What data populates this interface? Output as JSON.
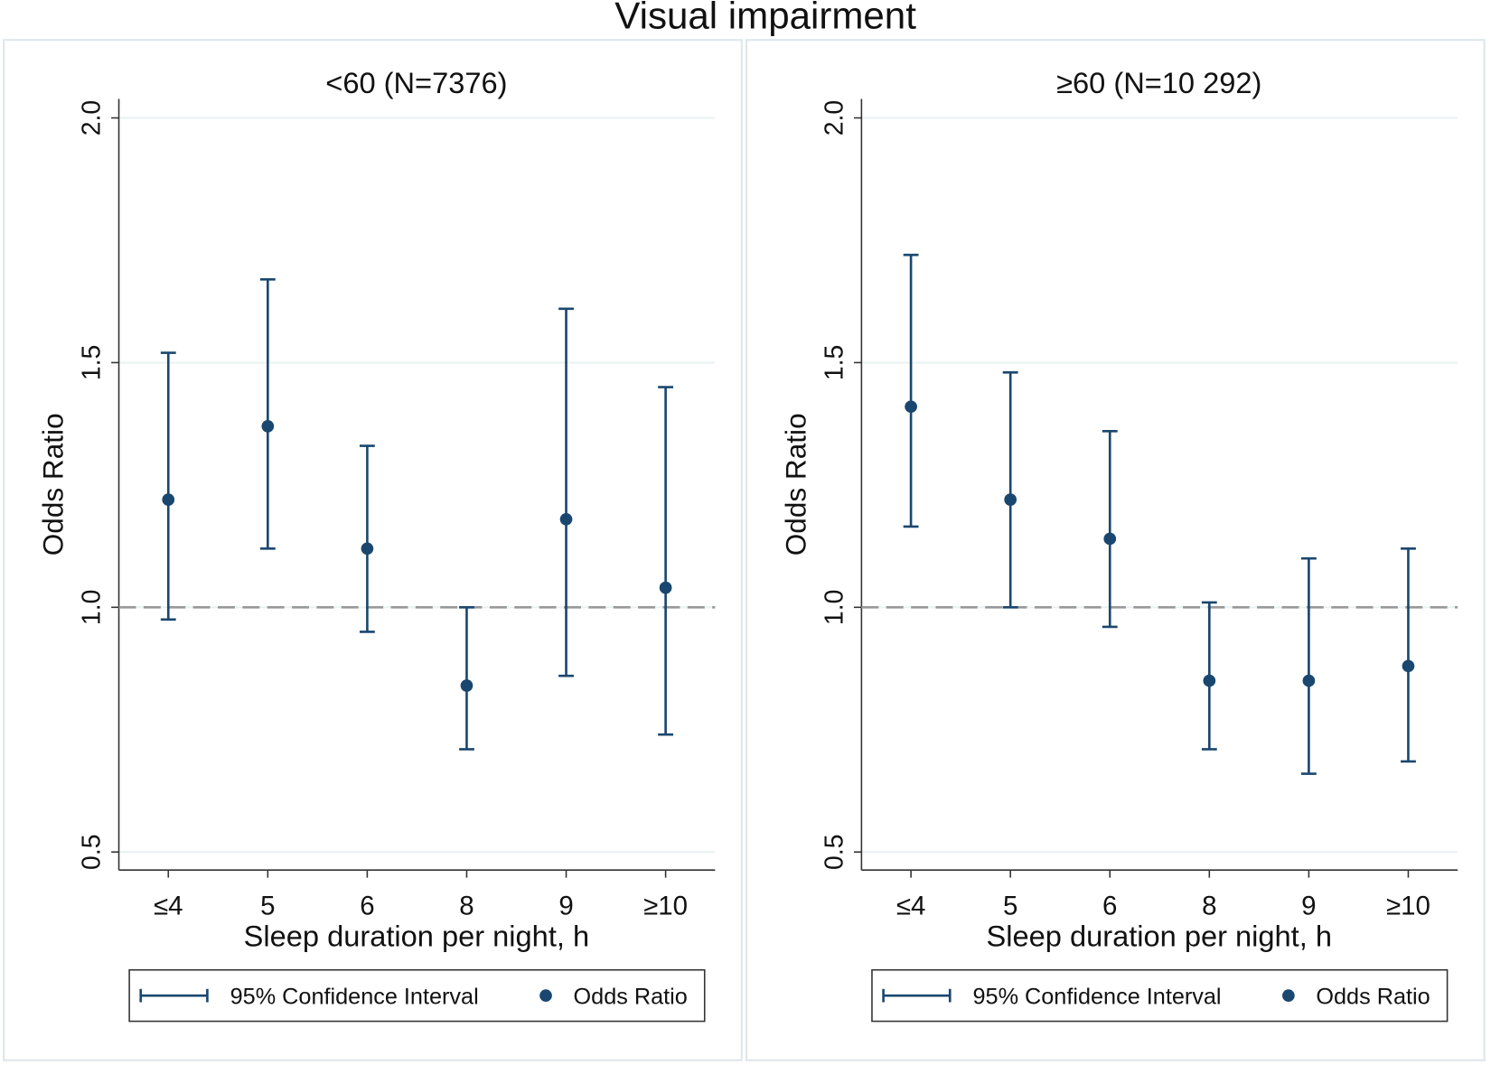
{
  "chart_data": {
    "title": "Visual impairment",
    "colors": {
      "marker": "#1a476f",
      "grid": "#eaf2f3",
      "reference": "#999999",
      "frame": "#dfe6ea"
    },
    "panels": [
      {
        "type": "scatter",
        "subtitle": "<60 (N=7376)",
        "xlabel": "Sleep duration per night, h",
        "ylabel": "Odds Ratio",
        "ylim": [
          0.5,
          2.0
        ],
        "yticks": [
          "0.5",
          "1.0",
          "1.5",
          "2.0"
        ],
        "reference_line": 1.0,
        "categories": [
          "≤4",
          "5",
          "6",
          "8",
          "9",
          "≥10"
        ],
        "or": [
          1.22,
          1.37,
          1.12,
          0.84,
          1.18,
          1.04
        ],
        "ci_low": [
          0.975,
          1.12,
          0.95,
          0.71,
          0.86,
          0.74
        ],
        "ci_high": [
          1.52,
          1.67,
          1.33,
          1.0,
          1.61,
          1.45
        ],
        "legend": [
          "95% Confidence Interval",
          "Odds Ratio"
        ]
      },
      {
        "type": "scatter",
        "subtitle": "≥60 (N=10 292)",
        "xlabel": "Sleep duration per night, h",
        "ylabel": "Odds Ratio",
        "ylim": [
          0.5,
          2.0
        ],
        "yticks": [
          "0.5",
          "1.0",
          "1.5",
          "2.0"
        ],
        "reference_line": 1.0,
        "categories": [
          "≤4",
          "5",
          "6",
          "8",
          "9",
          "≥10"
        ],
        "or": [
          1.41,
          1.22,
          1.14,
          0.85,
          0.85,
          0.88
        ],
        "ci_low": [
          1.165,
          1.0,
          0.96,
          0.71,
          0.66,
          0.685
        ],
        "ci_high": [
          1.72,
          1.48,
          1.36,
          1.01,
          1.1,
          1.12
        ],
        "legend": [
          "95% Confidence Interval",
          "Odds Ratio"
        ]
      }
    ]
  }
}
